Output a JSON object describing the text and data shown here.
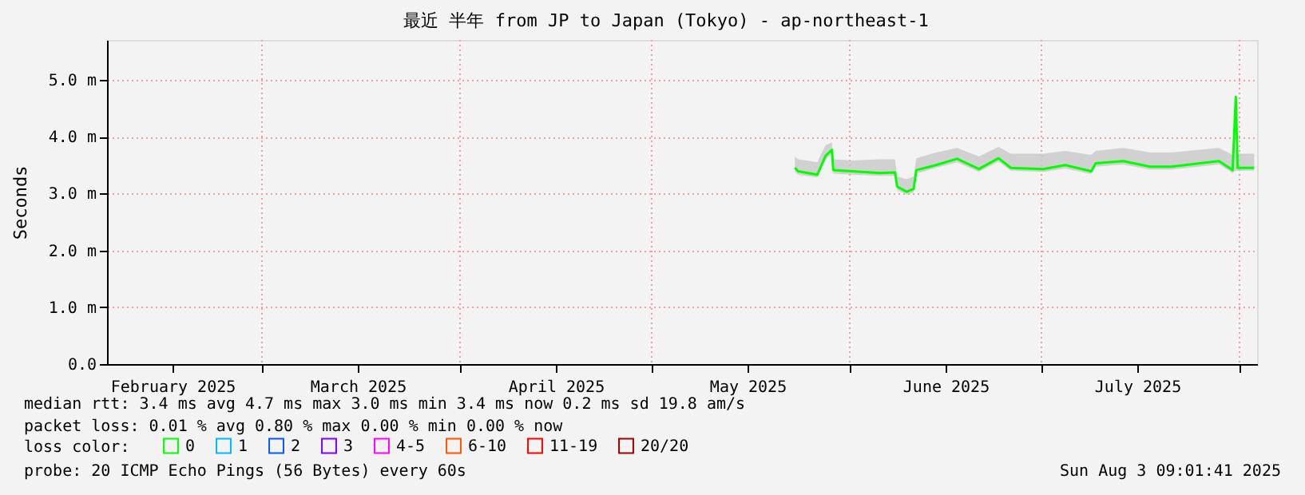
{
  "chart_data": {
    "type": "line",
    "title": "最近 半年 from JP to Japan (Tokyo) - ap-northeast-1",
    "ylabel": "Seconds",
    "xlim": [
      "2025-02-04T18:00",
      "2025-08-03T18:00"
    ],
    "xticks": [
      {
        "value": "2025-02-15",
        "label": "February 2025"
      },
      {
        "value": "2025-03-01",
        "label": null
      },
      {
        "value": "2025-03-16",
        "label": "March 2025"
      },
      {
        "value": "2025-04-01",
        "label": null
      },
      {
        "value": "2025-04-16",
        "label": "April 2025"
      },
      {
        "value": "2025-05-01",
        "label": null
      },
      {
        "value": "2025-05-16",
        "label": "May 2025"
      },
      {
        "value": "2025-06-01",
        "label": null
      },
      {
        "value": "2025-06-16",
        "label": "June 2025"
      },
      {
        "value": "2025-07-01",
        "label": null
      },
      {
        "value": "2025-07-16",
        "label": "July 2025"
      },
      {
        "value": "2025-08-01",
        "label": null
      }
    ],
    "ylim": [
      0,
      5.7
    ],
    "yticks": [
      {
        "value": 0,
        "label": "0.0"
      },
      {
        "value": 1,
        "label": "1.0 m"
      },
      {
        "value": 2,
        "label": "2.0 m"
      },
      {
        "value": 3,
        "label": "3.0 m"
      },
      {
        "value": 4,
        "label": "4.0 m"
      },
      {
        "value": 5,
        "label": "5.0 m"
      }
    ],
    "grid": true,
    "legend": "bottom",
    "legend_title": "loss color:",
    "marker": "none",
    "line_style": "solid",
    "x": [
      "2025-05-23T10:00",
      "2025-05-23T22:00",
      "2025-05-26T22:00",
      "2025-05-28T05:00",
      "2025-05-29T05:00",
      "2025-05-29T10:00",
      "2025-06-01T07:00",
      "2025-06-05T18:00",
      "2025-06-08T02:00",
      "2025-06-08T10:00",
      "2025-06-09T22:00",
      "2025-06-11T00:00",
      "2025-06-11T10:00",
      "2025-06-14T12:00",
      "2025-06-17T19:00",
      "2025-06-21T05:00",
      "2025-06-24T07:00",
      "2025-06-26T05:00",
      "2025-07-01T07:00",
      "2025-07-04T17:00",
      "2025-07-08T19:00",
      "2025-07-09T12:00",
      "2025-07-13T19:00",
      "2025-07-18T00:00",
      "2025-07-21T07:00",
      "2025-07-28T19:00",
      "2025-07-30T22:00",
      "2025-07-31T10:00",
      "2025-07-31T17:00",
      "2025-08-03T07:00"
    ],
    "series": [
      {
        "name": "0",
        "color": "#00ff00",
        "values": [
          3.45,
          3.39,
          3.33,
          3.66,
          3.77,
          3.41,
          3.39,
          3.36,
          3.37,
          3.12,
          3.03,
          3.08,
          3.41,
          3.5,
          3.61,
          3.43,
          3.62,
          3.45,
          3.43,
          3.5,
          3.39,
          3.53,
          3.57,
          3.47,
          3.47,
          3.57,
          3.41,
          4.7,
          3.45,
          3.45
        ],
        "lower": [
          3.38,
          3.33,
          3.28,
          3.6,
          3.7,
          3.35,
          3.33,
          3.31,
          3.31,
          3.06,
          2.98,
          3.02,
          3.35,
          3.45,
          3.55,
          3.38,
          3.56,
          3.4,
          3.38,
          3.44,
          3.34,
          3.47,
          3.51,
          3.42,
          3.42,
          3.51,
          3.36,
          3.4,
          3.4,
          3.4
        ],
        "upper": [
          3.65,
          3.6,
          3.55,
          3.85,
          3.9,
          3.6,
          3.58,
          3.6,
          3.6,
          3.3,
          3.25,
          3.3,
          3.62,
          3.72,
          3.8,
          3.65,
          3.82,
          3.7,
          3.7,
          3.75,
          3.68,
          3.75,
          3.8,
          3.72,
          3.72,
          3.8,
          3.68,
          3.8,
          3.7,
          3.7
        ]
      },
      {
        "name": "1",
        "color": "#00b8ff",
        "values": [
          null,
          null,
          null,
          null,
          null,
          null,
          null,
          null,
          null,
          null,
          null,
          null,
          null,
          null,
          null,
          null,
          null,
          null,
          null,
          null,
          null,
          null,
          null,
          null,
          null,
          null,
          null,
          null,
          null,
          null
        ]
      },
      {
        "name": "2",
        "color": "#0059ff",
        "values": [
          null,
          null,
          null,
          null,
          null,
          null,
          null,
          null,
          null,
          null,
          null,
          null,
          null,
          null,
          null,
          null,
          null,
          null,
          null,
          null,
          null,
          null,
          null,
          null,
          null,
          null,
          null,
          null,
          null,
          null
        ]
      },
      {
        "name": "3",
        "color": "#7e00ff",
        "values": [
          null,
          null,
          null,
          null,
          null,
          null,
          null,
          null,
          null,
          null,
          null,
          null,
          null,
          null,
          null,
          null,
          null,
          null,
          null,
          null,
          null,
          null,
          null,
          null,
          null,
          null,
          null,
          null,
          null,
          null
        ]
      },
      {
        "name": "4-5",
        "color": "#ff00ff",
        "values": [
          null,
          null,
          null,
          null,
          null,
          null,
          null,
          null,
          null,
          null,
          null,
          null,
          null,
          null,
          null,
          null,
          null,
          null,
          null,
          null,
          null,
          null,
          null,
          null,
          null,
          null,
          null,
          null,
          null,
          null
        ]
      },
      {
        "name": "6-10",
        "color": "#ff5500",
        "values": [
          null,
          null,
          null,
          null,
          null,
          null,
          null,
          null,
          null,
          null,
          null,
          null,
          null,
          null,
          null,
          null,
          null,
          null,
          null,
          null,
          null,
          null,
          null,
          null,
          null,
          null,
          null,
          null,
          null,
          null
        ]
      },
      {
        "name": "11-19",
        "color": "#ff0000",
        "values": [
          null,
          null,
          null,
          null,
          null,
          null,
          null,
          null,
          null,
          null,
          null,
          null,
          null,
          null,
          null,
          null,
          null,
          null,
          null,
          null,
          null,
          null,
          null,
          null,
          null,
          null,
          null,
          null,
          null,
          null
        ]
      },
      {
        "name": "20/20",
        "color": "#a10000",
        "values": [
          null,
          null,
          null,
          null,
          null,
          null,
          null,
          null,
          null,
          null,
          null,
          null,
          null,
          null,
          null,
          null,
          null,
          null,
          null,
          null,
          null,
          null,
          null,
          null,
          null,
          null,
          null,
          null,
          null,
          null
        ]
      }
    ],
    "annotations": [
      "median rtt:  3.4 ms avg  4.7 ms max  3.0 ms min  3.4 ms now  0.2 ms sd  19.8   am/s",
      "packet loss: 0.01 % avg  0.80 % max  0.00 % min  0.00 % now",
      "probe:       20 ICMP Echo Pings (56 Bytes) every 60s",
      "Sun Aug  3 09:01:41 2025"
    ]
  }
}
